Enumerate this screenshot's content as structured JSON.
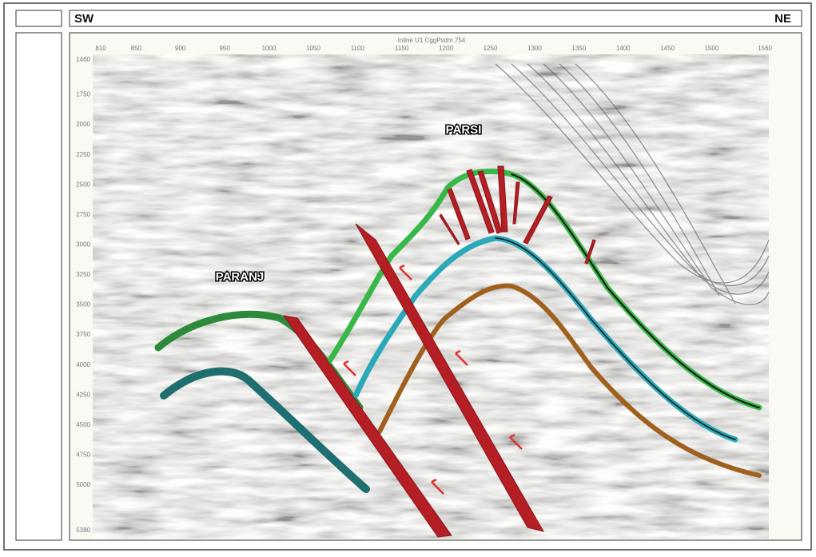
{
  "header": {
    "left": "SW",
    "right": "NE"
  },
  "section": {
    "title": "Inline U1 CggPsdm 754",
    "xticks": [
      810,
      850,
      900,
      950,
      1000,
      1050,
      1100,
      1150,
      1200,
      1250,
      1300,
      1350,
      1400,
      1450,
      1500,
      1560
    ],
    "yticks": [
      1460,
      1750,
      2000,
      2250,
      2500,
      2750,
      3000,
      3250,
      3500,
      3750,
      4000,
      4250,
      4500,
      4750,
      5000,
      5380
    ],
    "labels": [
      "PARSI",
      "PARANJ"
    ]
  }
}
